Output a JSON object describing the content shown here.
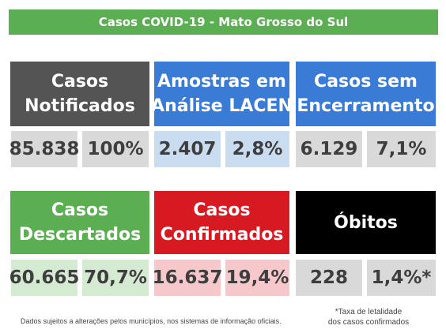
{
  "banner": {
    "title": "Casos COVID-19 - Mato Grosso do Sul"
  },
  "cards": {
    "notificados": {
      "line1": "Casos",
      "line2": "Notificados",
      "value": "85.838",
      "percent": "100%"
    },
    "lacen": {
      "line1": "Amostras em",
      "line2": "Análise LACEN",
      "value": "2.407",
      "percent": "2,8%"
    },
    "sem_encerramento": {
      "line1": "Casos sem",
      "line2": "Encerramento",
      "value": "6.129",
      "percent": "7,1%"
    },
    "descartados": {
      "line1": "Casos",
      "line2": "Descartados",
      "value": "60.665",
      "percent": "70,7%"
    },
    "confirmados": {
      "line1": "Casos",
      "line2": "Confirmados",
      "value": "16.637",
      "percent": "19,4%"
    },
    "obitos": {
      "line1": "Óbitos",
      "value": "228",
      "percent": "1,4%*"
    }
  },
  "footer": {
    "note": "Dados sujeitos a alterações pelos municípios, nos sistemas de informação oficiais.",
    "footnote_line1": "*Taxa de letalidade",
    "footnote_line2": "dos casos confirmados"
  },
  "colors": {
    "banner_green": "#5cae52",
    "gray_header": "#545454",
    "blue_header": "#3a7bd5",
    "green_header": "#5cae52",
    "red_header": "#d71921",
    "black_header": "#000000",
    "gray_light": "#d9d9d9",
    "blue_light": "#c9dcf0",
    "green_light": "#d5ebd1",
    "red_light": "#f6c7cb"
  }
}
